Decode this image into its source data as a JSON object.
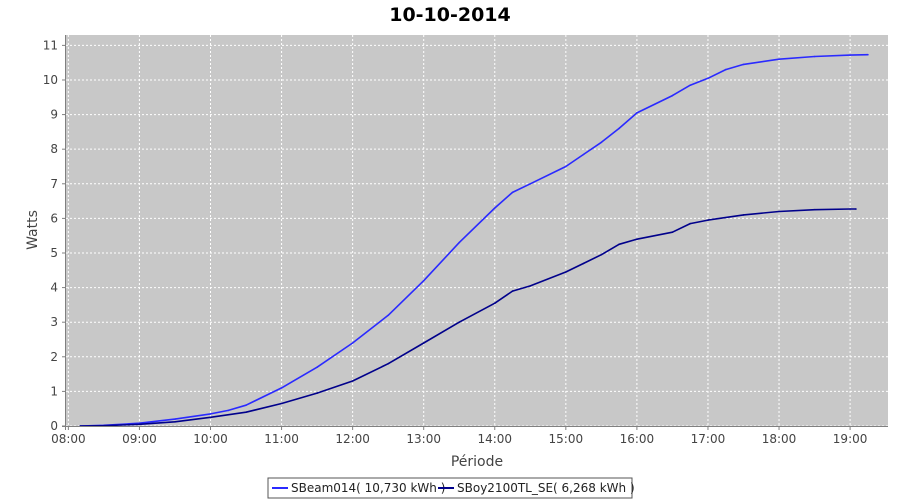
{
  "chart_data": {
    "type": "line",
    "title": "10-10-2014",
    "xlabel": "Période",
    "ylabel": "Watts",
    "xlim": [
      "07:58",
      "19:32"
    ],
    "ylim": [
      0,
      11.3
    ],
    "x_ticks": [
      "08:00",
      "09:00",
      "10:00",
      "11:00",
      "12:00",
      "13:00",
      "14:00",
      "15:00",
      "16:00",
      "17:00",
      "18:00",
      "19:00"
    ],
    "y_ticks": [
      0,
      1,
      2,
      3,
      4,
      5,
      6,
      7,
      8,
      9,
      10,
      11
    ],
    "grid": true,
    "legend_position": "bottom-center",
    "colors": {
      "plot_background": "#c8c8c8",
      "grid": "#ffffff",
      "axis": "#808080"
    },
    "series": [
      {
        "name": "SBeam014( 10,730 kWh )",
        "color": "#2a2aff",
        "x": [
          "08:10",
          "08:30",
          "09:00",
          "09:30",
          "10:00",
          "10:15",
          "10:30",
          "11:00",
          "11:30",
          "12:00",
          "12:30",
          "13:00",
          "13:30",
          "14:00",
          "14:15",
          "14:30",
          "15:00",
          "15:15",
          "15:30",
          "15:45",
          "16:00",
          "16:30",
          "16:45",
          "17:00",
          "17:15",
          "17:30",
          "18:00",
          "18:30",
          "19:00",
          "19:15"
        ],
        "values": [
          0.0,
          0.02,
          0.08,
          0.2,
          0.35,
          0.45,
          0.6,
          1.1,
          1.7,
          2.4,
          3.2,
          4.2,
          5.3,
          6.3,
          6.75,
          7.0,
          7.5,
          7.85,
          8.2,
          8.6,
          9.05,
          9.55,
          9.85,
          10.05,
          10.3,
          10.45,
          10.6,
          10.68,
          10.72,
          10.73
        ]
      },
      {
        "name": "SBoy2100TL_SE( 6,268 kWh )",
        "color": "#00008b",
        "x": [
          "08:10",
          "08:30",
          "09:00",
          "09:30",
          "10:00",
          "10:30",
          "11:00",
          "11:30",
          "12:00",
          "12:30",
          "13:00",
          "13:30",
          "14:00",
          "14:15",
          "14:30",
          "15:00",
          "15:15",
          "15:30",
          "15:45",
          "16:00",
          "16:30",
          "16:45",
          "17:00",
          "17:30",
          "18:00",
          "18:30",
          "19:00",
          "19:05"
        ],
        "values": [
          0.0,
          0.01,
          0.05,
          0.12,
          0.25,
          0.4,
          0.65,
          0.95,
          1.3,
          1.8,
          2.4,
          3.0,
          3.55,
          3.9,
          4.05,
          4.45,
          4.7,
          4.95,
          5.25,
          5.4,
          5.6,
          5.85,
          5.95,
          6.1,
          6.2,
          6.25,
          6.27,
          6.27
        ]
      }
    ]
  }
}
